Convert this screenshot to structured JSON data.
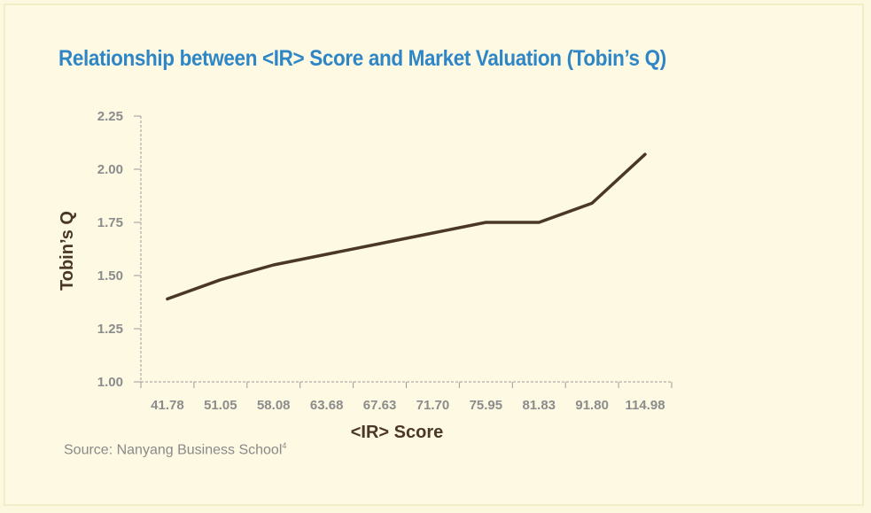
{
  "chart_data": {
    "type": "line",
    "title": "Relationship between <IR> Score and Market Valuation (Tobin’s Q)",
    "xlabel": "<IR> Score",
    "ylabel": "Tobin’s Q",
    "categories": [
      "41.78",
      "51.05",
      "58.08",
      "63.68",
      "67.63",
      "71.70",
      "75.95",
      "81.83",
      "91.80",
      "114.98"
    ],
    "values": [
      1.39,
      1.48,
      1.55,
      1.6,
      1.65,
      1.7,
      1.75,
      1.75,
      1.84,
      2.07
    ],
    "ylim": [
      1.0,
      2.25
    ],
    "yticks": [
      "1.00",
      "1.25",
      "1.50",
      "1.75",
      "2.00",
      "2.25"
    ],
    "grid": false,
    "line_color": "#4a3728"
  },
  "source": {
    "text": "Source: Nanyang Business School",
    "footnote": "4"
  }
}
